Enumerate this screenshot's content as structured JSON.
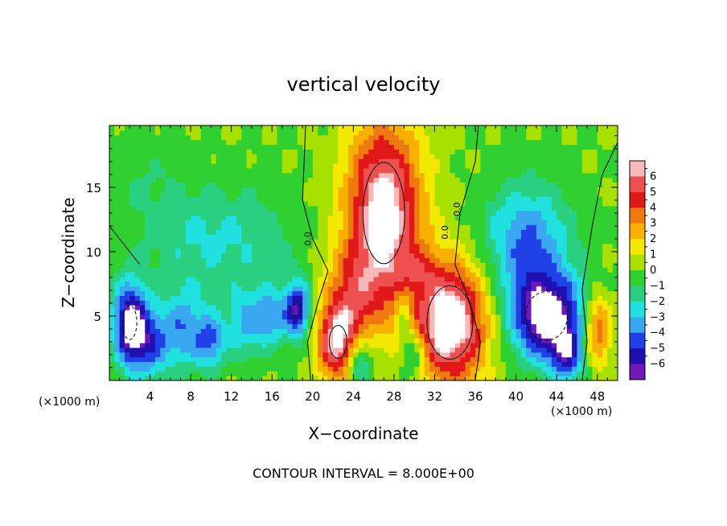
{
  "chart_data": {
    "type": "heatmap",
    "title": "vertical velocity",
    "xlabel": "X−coordinate",
    "ylabel": "Z−coordinate",
    "x_unit_note": "(×1000 m)",
    "y_unit_note": "(×1000 m)",
    "xlim": [
      0,
      50
    ],
    "ylim": [
      0,
      19.8
    ],
    "x_ticks": [
      4,
      8,
      12,
      16,
      20,
      24,
      28,
      32,
      36,
      40,
      44,
      48
    ],
    "y_ticks": [
      5,
      10,
      15
    ],
    "x_tick_labels": [
      "4",
      "8",
      "12",
      "16",
      "20",
      "24",
      "28",
      "32",
      "36",
      "40",
      "44",
      "48"
    ],
    "y_tick_labels": [
      "5",
      "10",
      "15"
    ],
    "colorbar": {
      "levels": [
        6,
        5,
        4,
        3,
        2,
        1,
        0,
        -1,
        -2,
        -3,
        -4,
        -5,
        -6
      ],
      "labels": [
        "6",
        "5",
        "4",
        "3",
        "2",
        "1",
        "0",
        "−1",
        "−2",
        "−3",
        "−4",
        "−5",
        "−6"
      ],
      "colors": [
        "#f6b8b8",
        "#ee5050",
        "#e01818",
        "#f07810",
        "#f8b000",
        "#f2e800",
        "#a8e000",
        "#30d030",
        "#28d080",
        "#20e0e0",
        "#3aa8f0",
        "#2040e8",
        "#2010b0",
        "#7018b8"
      ]
    },
    "footer": "CONTOUR INTERVAL = 8.000E+00",
    "contour_labels": [
      "0.0",
      "0.0",
      "0.0"
    ],
    "features": [
      {
        "kind": "updraft",
        "x": 27,
        "z": 13,
        "sx": 2.6,
        "sz": 5.0,
        "w": 7.5
      },
      {
        "kind": "updraft",
        "x": 33.5,
        "z": 4.5,
        "sx": 2.6,
        "sz": 3.3,
        "w": 8.0
      },
      {
        "kind": "updraft",
        "x": 22.5,
        "z": 3.0,
        "sx": 1.5,
        "sz": 2.2,
        "w": 6.5
      },
      {
        "kind": "updraft",
        "x": 24,
        "z": 7,
        "sx": 2.0,
        "sz": 2.5,
        "w": 3.0
      },
      {
        "kind": "updraft",
        "x": 48,
        "z": 4,
        "sx": 1.0,
        "sz": 2.0,
        "w": 4.5
      },
      {
        "kind": "updraft",
        "x": 30,
        "z": 8.5,
        "sx": 1.5,
        "sz": 1.0,
        "w": 1.5
      },
      {
        "kind": "downdraft",
        "x": 43,
        "z": 5,
        "sx": 2.6,
        "sz": 2.4,
        "w": -7.5
      },
      {
        "kind": "downdraft",
        "x": 41,
        "z": 11,
        "sx": 3.0,
        "sz": 3.0,
        "w": -4.0
      },
      {
        "kind": "downdraft",
        "x": 45,
        "z": 2,
        "sx": 1.2,
        "sz": 1.5,
        "w": -4.0
      },
      {
        "kind": "downdraft",
        "x": 2,
        "z": 4.5,
        "sx": 1.2,
        "sz": 2.3,
        "w": -6.5
      },
      {
        "kind": "downdraft",
        "x": 4,
        "z": 3,
        "sx": 1.5,
        "sz": 2.0,
        "w": -4.0
      },
      {
        "kind": "downdraft",
        "x": 18.5,
        "z": 5.5,
        "sx": 0.9,
        "sz": 1.6,
        "w": -6.0
      },
      {
        "kind": "downdraft",
        "x": 7.5,
        "z": 4,
        "sx": 1.5,
        "sz": 2.2,
        "w": -3.5
      },
      {
        "kind": "downdraft",
        "x": 10,
        "z": 3,
        "sx": 1.0,
        "sz": 1.5,
        "w": -3.5
      },
      {
        "kind": "downdraft",
        "x": 13.5,
        "z": 4.5,
        "sx": 1.5,
        "sz": 2.0,
        "w": -3.0
      },
      {
        "kind": "downdraft",
        "x": 16,
        "z": 5,
        "sx": 1.0,
        "sz": 1.5,
        "w": -3.0
      },
      {
        "kind": "downdraft",
        "x": 8,
        "z": 11,
        "sx": 4.0,
        "sz": 3.0,
        "w": -1.6
      },
      {
        "kind": "downdraft",
        "x": 14,
        "z": 11,
        "sx": 4.0,
        "sz": 3.0,
        "w": -1.3
      },
      {
        "kind": "downdraft",
        "x": 24.5,
        "z": 1.5,
        "sx": 0.9,
        "sz": 1.4,
        "w": -4.0
      },
      {
        "kind": "downdraft",
        "x": 30,
        "z": 2,
        "sx": 0.9,
        "sz": 1.5,
        "w": -3.0
      },
      {
        "kind": "downdraft",
        "x": 29,
        "z": 5,
        "sx": 0.6,
        "sz": 2.0,
        "w": -2.0
      },
      {
        "kind": "downdraft",
        "x": 3,
        "z": 16,
        "sx": 3.0,
        "sz": 2.5,
        "w": -0.8
      }
    ]
  }
}
